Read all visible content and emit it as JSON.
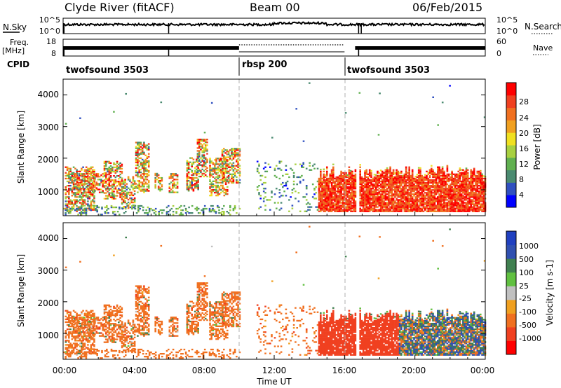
{
  "header": {
    "title": "Clyde River (fitACF)",
    "beam": "Beam 00",
    "date": "06/Feb/2015"
  },
  "strips": {
    "nsky_label": "N.Sky",
    "nsky_ticks": [
      "10^5",
      "10^0"
    ],
    "nsearch_label": "N.Search",
    "nsearch_ticks": [
      "10^5",
      "10^0"
    ],
    "freq_label_1": "Freq.",
    "freq_label_2": "[MHz]",
    "freq_ticks": [
      "18",
      "8"
    ],
    "nave_label": "Nave",
    "nave_ticks": [
      "60",
      "0"
    ],
    "cpid_label": "CPID",
    "cpid_segments": [
      {
        "name": "twofsound 3503",
        "start": 0,
        "end": 10
      },
      {
        "name": "rbsp 200",
        "start": 10,
        "end": 16
      },
      {
        "name": "twofsound 3503",
        "start": 16,
        "end": 24
      }
    ]
  },
  "xaxis": {
    "ticks": [
      "00:00",
      "04:00",
      "08:00",
      "12:00",
      "16:00",
      "20:00",
      "00:00"
    ],
    "label": "Time UT"
  },
  "panels": {
    "power": {
      "ylabel": "Slant Range [km]",
      "yticks": [
        "4000",
        "3000",
        "2000",
        "1000"
      ],
      "cb_label": "Power [dB]",
      "cb_ticks": [
        "28",
        "24",
        "20",
        "16",
        "12",
        "8",
        "4"
      ]
    },
    "velocity": {
      "ylabel": "Slant Range [km]",
      "yticks": [
        "4000",
        "3000",
        "2000",
        "1000"
      ],
      "cb_label": "Velocity [m s-1]",
      "cb_ticks": [
        "1000",
        "500",
        "100",
        "25",
        "-25",
        "-100",
        "-500",
        "-1000"
      ]
    }
  },
  "colors": {
    "power_scale": [
      "#0000ff",
      "#3050c0",
      "#4a8a70",
      "#60b050",
      "#a8d040",
      "#f0e020",
      "#f0a020",
      "#f07020",
      "#f04020",
      "#ff0000"
    ],
    "velocity_scale": [
      "#ff0000",
      "#f04020",
      "#f07020",
      "#f0a020",
      "#c0c0c0",
      "#60c040",
      "#408050",
      "#3050b0",
      "#2040c0"
    ]
  },
  "chart_data": [
    {
      "type": "heatmap",
      "title": "Power",
      "x_range_hours": [
        0,
        24
      ],
      "ylim": [
        180,
        4500
      ],
      "zlim": [
        0,
        32
      ],
      "zlabel": "Power [dB]",
      "regions": [
        {
          "t0": 0.0,
          "t1": 10.0,
          "r0": 250,
          "r1": 2300,
          "level": "high, patchy"
        },
        {
          "t0": 10.0,
          "t1": 14.5,
          "r0": 300,
          "r1": 1900,
          "level": "low, sparse"
        },
        {
          "t0": 14.5,
          "t1": 24.0,
          "r0": 300,
          "r1": 1900,
          "level": "high (>28 dB core)"
        }
      ]
    },
    {
      "type": "heatmap",
      "title": "Velocity",
      "x_range_hours": [
        0,
        24
      ],
      "ylim": [
        180,
        4500
      ],
      "zlim": [
        -1000,
        1000
      ],
      "zlabel": "Velocity [m s-1]",
      "regions": [
        {
          "t0": 0.0,
          "t1": 10.0,
          "r0": 250,
          "r1": 2300,
          "level": "-100 to -500 (orange)"
        },
        {
          "t0": 14.5,
          "t1": 19.0,
          "r0": 300,
          "r1": 1500,
          "level": "-500 to -1000 (red)"
        },
        {
          "t0": 19.0,
          "t1": 24.0,
          "r0": 300,
          "r1": 1500,
          "level": "+100 to +1000 (green/blue)"
        }
      ]
    }
  ]
}
